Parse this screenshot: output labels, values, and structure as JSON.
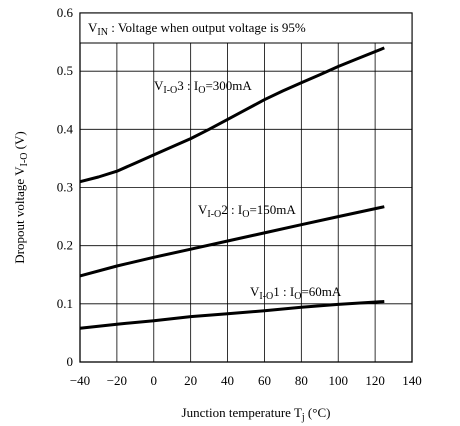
{
  "chart_data": {
    "type": "line",
    "title": "",
    "xlabel": {
      "main": "Junction temperature T",
      "sub": "j",
      "unit": " (°C)"
    },
    "ylabel": {
      "main": "Dropout voltage V",
      "sub": "I-O",
      "unit": " (V)"
    },
    "xlim": [
      -40,
      140
    ],
    "ylim": [
      0,
      0.6
    ],
    "x_ticks": [
      -40,
      -20,
      0,
      20,
      40,
      60,
      80,
      100,
      120,
      140
    ],
    "x_tick_labels": [
      "−40",
      "−20",
      "0",
      "20",
      "40",
      "60",
      "80",
      "100",
      "120",
      "140"
    ],
    "y_ticks": [
      0,
      0.1,
      0.2,
      0.3,
      0.4,
      0.5,
      0.6
    ],
    "y_tick_labels": [
      "0",
      "0.1",
      "0.2",
      "0.3",
      "0.4",
      "0.5",
      "0.6"
    ],
    "grid": true,
    "note": {
      "pre": "V",
      "sub": "IN",
      "post": " : Voltage when output voltage is 95%"
    },
    "series": [
      {
        "label_main": "V",
        "label_sub": "I-O",
        "label_num": "3 : I",
        "label_sub2": "O",
        "label_post": "=300mA",
        "x": [
          -40,
          -30,
          -20,
          -10,
          0,
          10,
          20,
          30,
          40,
          50,
          60,
          70,
          80,
          90,
          100,
          110,
          125
        ],
        "y": [
          0.31,
          0.318,
          0.328,
          0.342,
          0.356,
          0.37,
          0.384,
          0.4,
          0.417,
          0.434,
          0.451,
          0.466,
          0.48,
          0.494,
          0.508,
          0.521,
          0.54
        ]
      },
      {
        "label_main": "V",
        "label_sub": "I-O",
        "label_num": "2 : I",
        "label_sub2": "O",
        "label_post": "=150mA",
        "x": [
          -40,
          -20,
          0,
          20,
          40,
          60,
          80,
          100,
          125
        ],
        "y": [
          0.148,
          0.165,
          0.18,
          0.194,
          0.208,
          0.222,
          0.236,
          0.25,
          0.267
        ]
      },
      {
        "label_main": "V",
        "label_sub": "I-O",
        "label_num": "1 : I",
        "label_sub2": "O",
        "label_post": "=60mA",
        "x": [
          -40,
          -20,
          0,
          20,
          40,
          60,
          80,
          100,
          125
        ],
        "y": [
          0.058,
          0.065,
          0.071,
          0.078,
          0.083,
          0.088,
          0.094,
          0.099,
          0.104
        ]
      }
    ]
  }
}
